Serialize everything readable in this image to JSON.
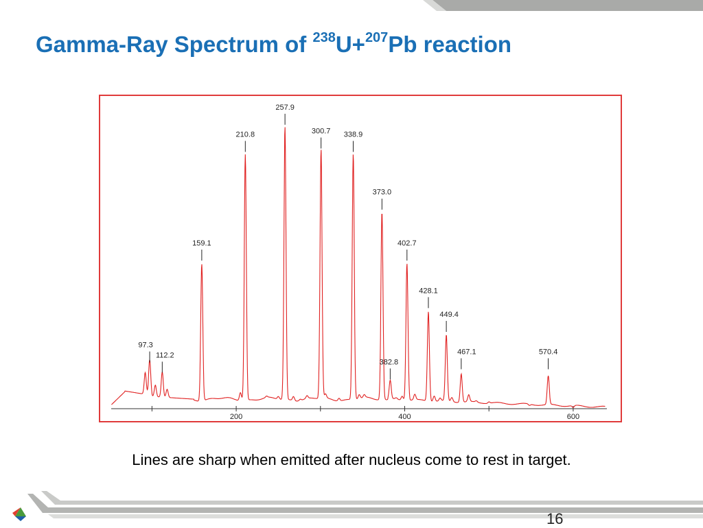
{
  "title": {
    "prefix": "Gamma-Ray Spectrum of ",
    "sup1": "238",
    "mid": "U+",
    "sup2": "207",
    "suffix": "Pb reaction"
  },
  "caption": "Lines are sharp when emitted after nucleus come to rest in target.",
  "slide_number": "16",
  "colors": {
    "title": "#1a6fb5",
    "spectrum": "#e02020",
    "frame": "#e03a3a",
    "decoration": "#a9aaa8"
  },
  "chart_data": {
    "type": "line",
    "title": "",
    "xlabel": "",
    "ylabel": "",
    "xlim": [
      50,
      640
    ],
    "ylim": [
      0,
      420
    ],
    "x_ticks": [
      200,
      400,
      600
    ],
    "x_minor_ticks": [
      100,
      300,
      500
    ],
    "grid": false,
    "peaks": [
      {
        "label": "97.3",
        "x": 97.3,
        "y": 60
      },
      {
        "label": "112.2",
        "x": 112.2,
        "y": 45
      },
      {
        "label": "159.1",
        "x": 159.1,
        "y": 210
      },
      {
        "label": "210.8",
        "x": 210.8,
        "y": 370
      },
      {
        "label": "257.9",
        "x": 257.9,
        "y": 410
      },
      {
        "label": "300.7",
        "x": 300.7,
        "y": 375
      },
      {
        "label": "338.9",
        "x": 338.9,
        "y": 370
      },
      {
        "label": "373.0",
        "x": 373.0,
        "y": 285
      },
      {
        "label": "382.8",
        "x": 382.8,
        "y": 35
      },
      {
        "label": "402.7",
        "x": 402.7,
        "y": 210
      },
      {
        "label": "428.1",
        "x": 428.1,
        "y": 140
      },
      {
        "label": "449.4",
        "x": 449.4,
        "y": 105
      },
      {
        "label": "467.1",
        "x": 467.1,
        "y": 50
      },
      {
        "label": "570.4",
        "x": 570.4,
        "y": 50
      }
    ],
    "minor_peaks": [
      {
        "x": 92,
        "y": 40
      },
      {
        "x": 104,
        "y": 25
      },
      {
        "x": 118,
        "y": 20
      },
      {
        "x": 205,
        "y": 20
      },
      {
        "x": 236,
        "y": 10
      },
      {
        "x": 250,
        "y": 12
      },
      {
        "x": 268,
        "y": 14
      },
      {
        "x": 276,
        "y": 10
      },
      {
        "x": 284,
        "y": 12
      },
      {
        "x": 306,
        "y": 14
      },
      {
        "x": 322,
        "y": 12
      },
      {
        "x": 346,
        "y": 14
      },
      {
        "x": 352,
        "y": 12
      },
      {
        "x": 390,
        "y": 10
      },
      {
        "x": 397,
        "y": 14
      },
      {
        "x": 412,
        "y": 16
      },
      {
        "x": 435,
        "y": 16
      },
      {
        "x": 442,
        "y": 12
      },
      {
        "x": 456,
        "y": 14
      },
      {
        "x": 476,
        "y": 18
      },
      {
        "x": 485,
        "y": 10
      },
      {
        "x": 492,
        "y": 8
      },
      {
        "x": 500,
        "y": 10
      },
      {
        "x": 508,
        "y": 8
      },
      {
        "x": 525,
        "y": 8
      },
      {
        "x": 548,
        "y": 6
      },
      {
        "x": 590,
        "y": 8
      },
      {
        "x": 600,
        "y": 5
      }
    ]
  }
}
